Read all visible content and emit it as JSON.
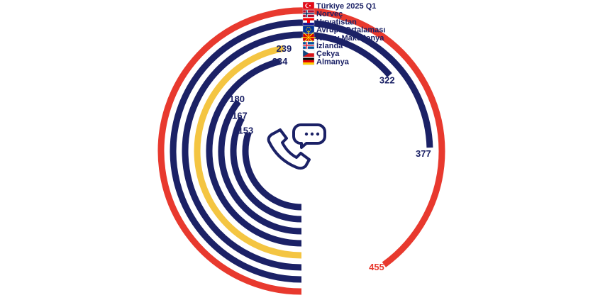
{
  "chart_data": {
    "type": "radial_bar",
    "max_value": 455,
    "series": [
      {
        "name": "Türkiye 2025 Q1",
        "value": 455,
        "color": "#e8392e",
        "flag": "turkey-flag-icon"
      },
      {
        "name": "Norveç",
        "value": 377,
        "color": "#1b2166",
        "flag": "norway-flag-icon"
      },
      {
        "name": "Hırvatistan",
        "value": 322,
        "color": "#1b2166",
        "flag": "croatia-flag-icon"
      },
      {
        "name": "Avrupa Ortalaması",
        "value": 239,
        "color": "#f4c542",
        "flag": "eu-flag-icon"
      },
      {
        "name": "Kuzey Makedonya",
        "value": 234,
        "color": "#1b2166",
        "flag": "north-macedonia-flag-icon"
      },
      {
        "name": "İzlanda",
        "value": 180,
        "color": "#1b2166",
        "flag": "iceland-flag-icon"
      },
      {
        "name": "Çekya",
        "value": 167,
        "color": "#1b2166",
        "flag": "czechia-flag-icon"
      },
      {
        "name": "Almanya",
        "value": 153,
        "color": "#1b2166",
        "flag": "germany-flag-icon"
      }
    ],
    "legend_position": "top-left",
    "center_icon": "phone-chat-icon"
  }
}
